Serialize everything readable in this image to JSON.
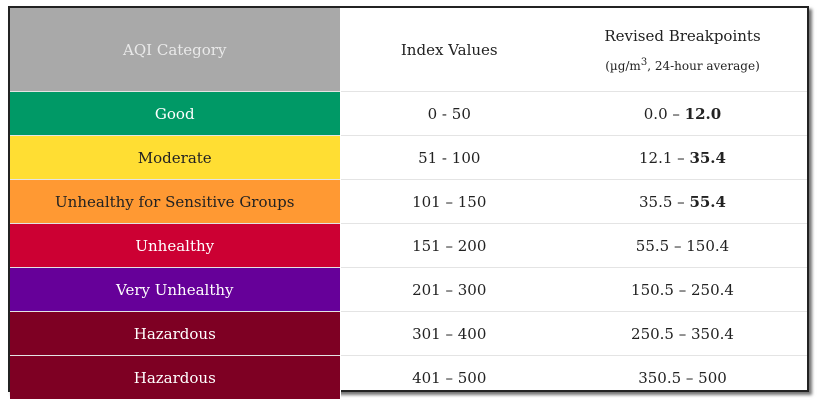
{
  "header": {
    "category": "AQI Category",
    "index": "Index Values",
    "breakpoints_title": "Revised Breakpoints",
    "breakpoints_unit_pre": "(µg/m",
    "breakpoints_unit_sup": "3",
    "breakpoints_unit_post": ", 24-hour average)"
  },
  "rows": [
    {
      "category": "Good",
      "index": "0 - 50",
      "bp_low": "0.0 – ",
      "bp_high": "12.0",
      "high_bold": true,
      "bg": "#009966",
      "fg": "#ffffff"
    },
    {
      "category": "Moderate",
      "index": "51 - 100",
      "bp_low": "12.1 – ",
      "bp_high": "35.4",
      "high_bold": true,
      "bg": "#ffde33",
      "fg": "#222222"
    },
    {
      "category": "Unhealthy for Sensitive Groups",
      "index": "101 – 150",
      "bp_low": "35.5 – ",
      "bp_high": "55.4",
      "high_bold": true,
      "bg": "#ff9933",
      "fg": "#222222"
    },
    {
      "category": "Unhealthy",
      "index": "151 – 200",
      "bp_low": "55.5 – ",
      "bp_high": "150.4",
      "high_bold": false,
      "bg": "#cc0033",
      "fg": "#ffffff"
    },
    {
      "category": "Very Unhealthy",
      "index": "201 – 300",
      "bp_low": "150.5 – ",
      "bp_high": "250.4",
      "high_bold": false,
      "bg": "#660099",
      "fg": "#ffffff"
    },
    {
      "category": "Hazardous",
      "index": "301 – 400",
      "bp_low": "250.5 – ",
      "bp_high": "350.4",
      "high_bold": false,
      "bg": "#7e0023",
      "fg": "#ffffff"
    },
    {
      "category": "Hazardous",
      "index": "401 – 500",
      "bp_low": "350.5 – ",
      "bp_high": "500",
      "high_bold": false,
      "bg": "#7e0023",
      "fg": "#ffffff"
    }
  ]
}
